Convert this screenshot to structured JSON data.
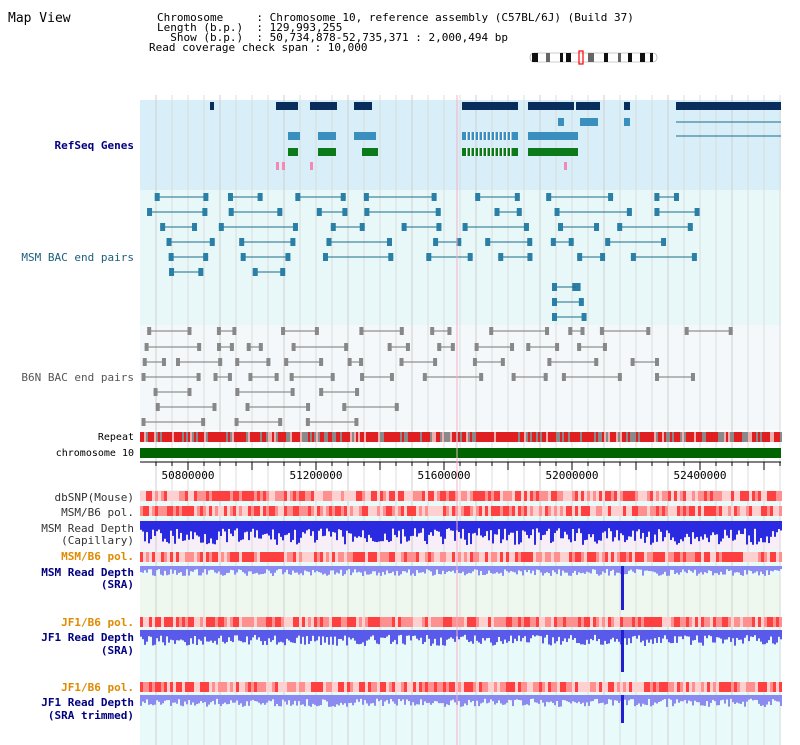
{
  "header": {
    "title": "Map View",
    "info_lines": [
      "Chromosome     : Chromosome 10, reference assembly (C57BL/6J) (Build 37)",
      "Length (b.p.)  : 129,993,255",
      "  Show (b.p.)  : 50,734,878-52,735,371 : 2,000,494 bp",
      "Read coverage check span : 10,000"
    ]
  },
  "tracks": {
    "refseq_genes": "RefSeq Genes",
    "msm_bac": "MSM BAC end pairs",
    "b6n_bac": "B6N BAC end pairs",
    "repeat": "Repeat",
    "chromosome": "chromosome 10",
    "dbsnp": "dbSNP(Mouse)",
    "msm_b6_pol_1": "MSM/B6 pol.",
    "msm_read_depth_cap": [
      "MSM Read Depth",
      "(Capillary)"
    ],
    "msm_b6_pol_2": "MSM/B6 pol.",
    "msm_read_depth_sra": [
      "MSM Read Depth",
      "(SRA)"
    ],
    "jf1_b6_pol_1": "JF1/B6 pol.",
    "jf1_read_depth_sra": [
      "JF1 Read Depth",
      "(SRA)"
    ],
    "jf1_b6_pol_2": "JF1/B6 pol.",
    "jf1_read_depth_trimmed": [
      "JF1 Read Depth",
      "(SRA trimmed)"
    ]
  },
  "axis": {
    "ticks": [
      "50800000",
      "51200000",
      "51600000",
      "52000000",
      "52400000"
    ]
  },
  "colors": {
    "refseq_bg": "#d8eef8",
    "bac_bg": "#e8f8f8",
    "b6n_bg": "#f4f8fa",
    "gene_dark": "#0a2e5c",
    "gene_mid": "#3a8fbf",
    "gene_green": "#0a7a1a",
    "bac_line": "#1a6d8c",
    "b6n_line": "#777777",
    "chrom_green": "#006400",
    "depth_blue": "#2a2ae0",
    "label_navy": "#000080",
    "label_orange": "#e08a00",
    "label_teal": "#1a5f7a"
  }
}
